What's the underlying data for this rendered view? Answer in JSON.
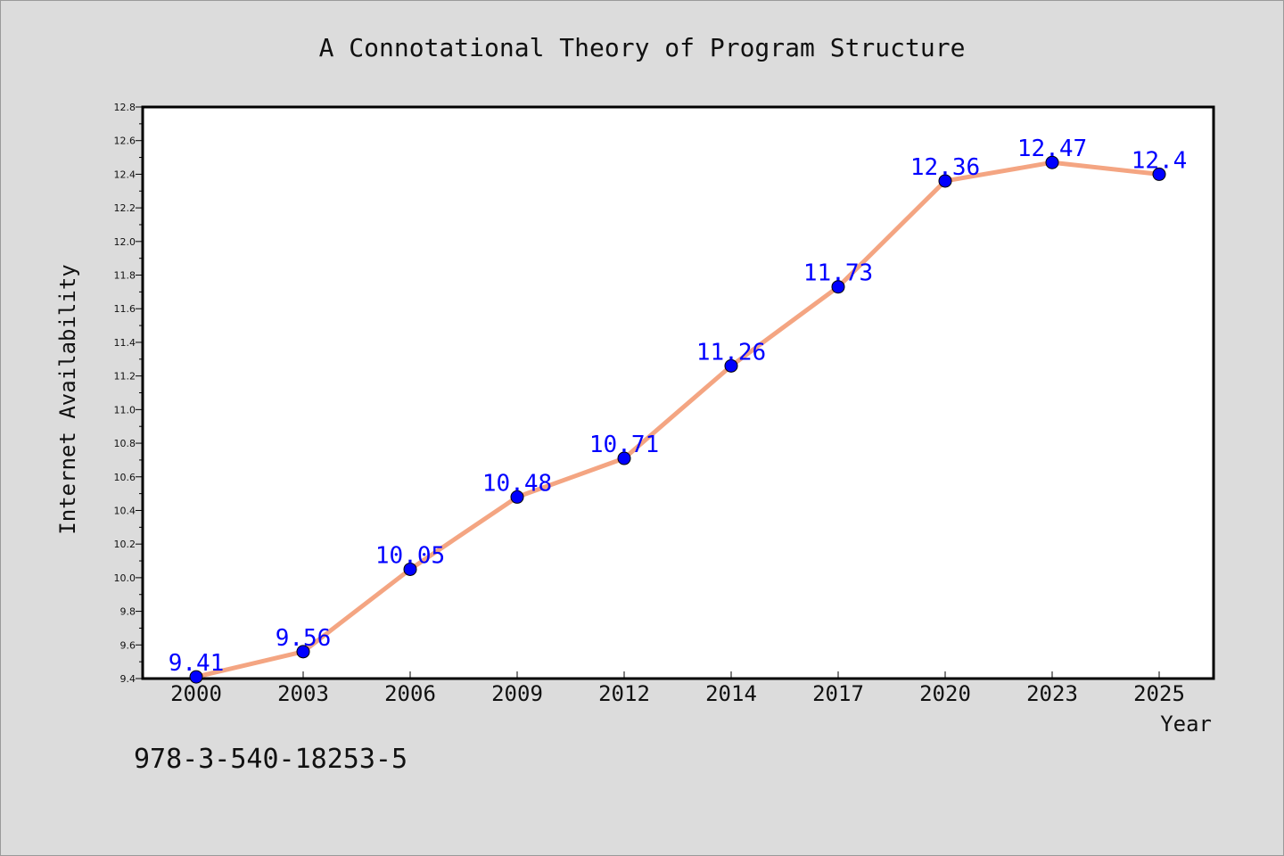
{
  "chart_data": {
    "type": "line",
    "title": "A Connotational Theory of Program Structure",
    "xlabel": "Year",
    "ylabel": "Internet Availability",
    "categories": [
      "2000",
      "2003",
      "2006",
      "2009",
      "2012",
      "2014",
      "2017",
      "2020",
      "2023",
      "2025"
    ],
    "series": [
      {
        "values": [
          9.41,
          9.56,
          10.05,
          10.48,
          10.71,
          11.26,
          11.73,
          12.36,
          12.47,
          12.4
        ],
        "labels": [
          "9.41",
          "9.56",
          "10.05",
          "10.48",
          "10.71",
          "11.26",
          "11.73",
          "12.36",
          "12.47",
          "12.4"
        ]
      }
    ],
    "ylim": [
      9.4,
      12.8
    ],
    "yticks": [
      "9.4",
      "9.6",
      "9.8",
      "10.0",
      "10.2",
      "10.4",
      "10.6",
      "10.8",
      "11.0",
      "11.2",
      "11.4",
      "11.6",
      "11.8",
      "12.0",
      "12.2",
      "12.4",
      "12.6",
      "12.8"
    ],
    "grid": false,
    "line_color": "#f4a582",
    "marker_color": "#0000ff",
    "label_color": "#0000ff",
    "plot_background": "#ffffff",
    "figure_background": "#dcdcdc"
  },
  "footer": {
    "isbn": "978-3-540-18253-5"
  }
}
